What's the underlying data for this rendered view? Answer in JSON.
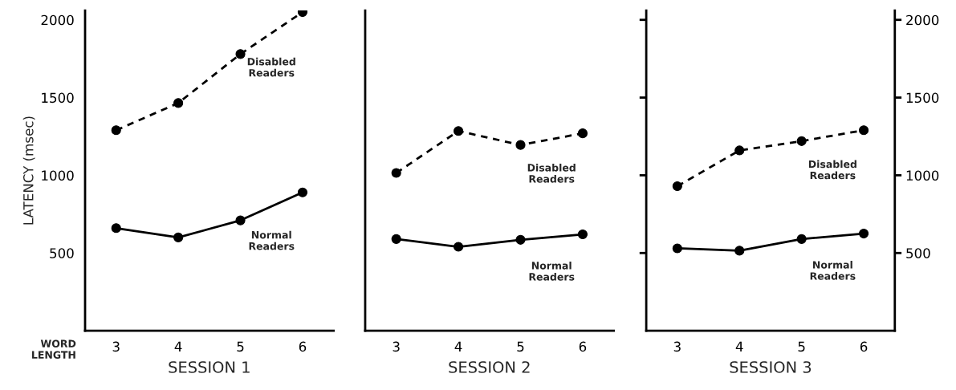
{
  "chart_data": [
    {
      "type": "line",
      "xlabel": "SESSION 1",
      "ylabel": "LATENCY (msec)",
      "x": [
        3,
        4,
        5,
        6
      ],
      "xlim": [
        2.5,
        6.5
      ],
      "xticks": [
        3,
        4,
        5,
        6
      ],
      "ylim": [
        0,
        2060
      ],
      "yticks": [
        500,
        1000,
        1500,
        2000
      ],
      "marker": "circle",
      "grid": false,
      "legend": false,
      "annotations": [
        "WORD\nLENGTH"
      ],
      "series": [
        {
          "name": "Disabled Readers",
          "color": "#000000",
          "line_style": "dashed",
          "values": [
            1290,
            1465,
            1780,
            2050
          ]
        },
        {
          "name": "Normal Readers",
          "color": "#000000",
          "line_style": "solid",
          "values": [
            660,
            600,
            710,
            890
          ]
        }
      ]
    },
    {
      "type": "line",
      "xlabel": "SESSION 2",
      "x": [
        3,
        4,
        5,
        6
      ],
      "xlim": [
        2.5,
        6.5
      ],
      "xticks": [
        3,
        4,
        5,
        6
      ],
      "ylim": [
        0,
        2060
      ],
      "yticks": [
        500,
        1000,
        1500,
        2000
      ],
      "tick_labels": "x",
      "marker": "circle",
      "grid": false,
      "legend": false,
      "series": [
        {
          "name": "Disabled Readers",
          "color": "#000000",
          "line_style": "dashed",
          "values": [
            1015,
            1285,
            1195,
            1270
          ]
        },
        {
          "name": "Normal Readers",
          "color": "#000000",
          "line_style": "solid",
          "values": [
            590,
            540,
            585,
            620
          ]
        }
      ]
    },
    {
      "type": "line",
      "xlabel": "SESSION 3",
      "x": [
        3,
        4,
        5,
        6
      ],
      "xlim": [
        2.5,
        6.5
      ],
      "xticks": [
        3,
        4,
        5,
        6
      ],
      "y2lim": [
        0,
        2060
      ],
      "y2ticks": [
        500,
        1000,
        1500,
        2000
      ],
      "marker": "circle",
      "grid": false,
      "legend": false,
      "series": [
        {
          "name": "Disabled Readers",
          "color": "#000000",
          "line_style": "dashed",
          "axis": "y2",
          "values": [
            930,
            1160,
            1220,
            1290
          ]
        },
        {
          "name": "Normal Readers",
          "color": "#000000",
          "line_style": "solid",
          "axis": "y2",
          "values": [
            530,
            515,
            590,
            625
          ]
        }
      ]
    }
  ]
}
